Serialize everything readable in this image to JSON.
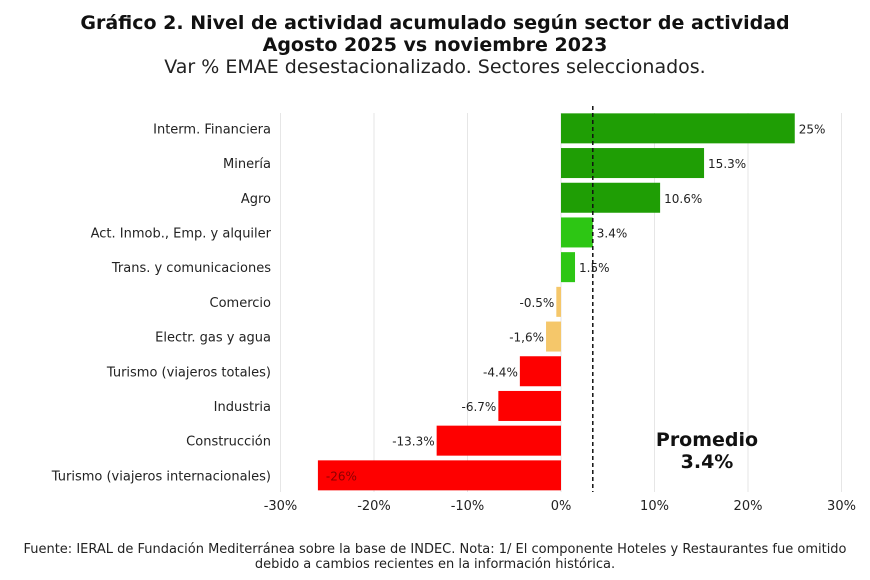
{
  "title": "Gráfico 2. Nivel de actividad acumulado según sector de actividad",
  "subtitle": "Agosto 2025 vs noviembre 2023",
  "subtitle2": "Var % EMAE desestacionalizado. Sectores seleccionados.",
  "source": "Fuente: IERAL de Fundación Mediterránea sobre la base de INDEC. Nota: 1/ El componente Hoteles y Restaurantes fue omitido debido a cambios recientes en la información histórica.",
  "chart_data": {
    "type": "bar",
    "orientation": "horizontal",
    "categories": [
      "Interm. Financiera",
      "Minería",
      "Agro",
      "Act. Inmob., Emp. y alquiler",
      "Trans. y comunicaciones",
      "Comercio",
      "Electr. gas y agua",
      "Turismo (viajeros totales)",
      "Industria",
      "Construcción",
      "Turismo (viajeros internacionales)"
    ],
    "values": [
      25,
      15.3,
      10.6,
      3.4,
      1.5,
      -0.5,
      -1.6,
      -4.4,
      -6.7,
      -13.3,
      -26
    ],
    "data_labels": [
      "25%",
      "15.3%",
      "10.6%",
      "3.4%",
      "1.5%",
      "-0.5%",
      "-1,6%",
      "-4.4%",
      "-6.7%",
      "-13.3%",
      "-26%"
    ],
    "colors": [
      "#1f9e05",
      "#1f9e05",
      "#1f9e05",
      "#2dc614",
      "#2dc614",
      "#f5c76a",
      "#f5c76a",
      "#fe0000",
      "#fe0000",
      "#fe0000",
      "#fe0000"
    ],
    "xlim": [
      -30,
      30
    ],
    "xticks": [
      "-30%",
      "-20%",
      "-10%",
      "0%",
      "10%",
      "20%",
      "30%"
    ],
    "grid": true,
    "reference_line": {
      "value": 3.4,
      "style": "dashed",
      "label": "Promedio",
      "value_label": "3.4%"
    }
  }
}
